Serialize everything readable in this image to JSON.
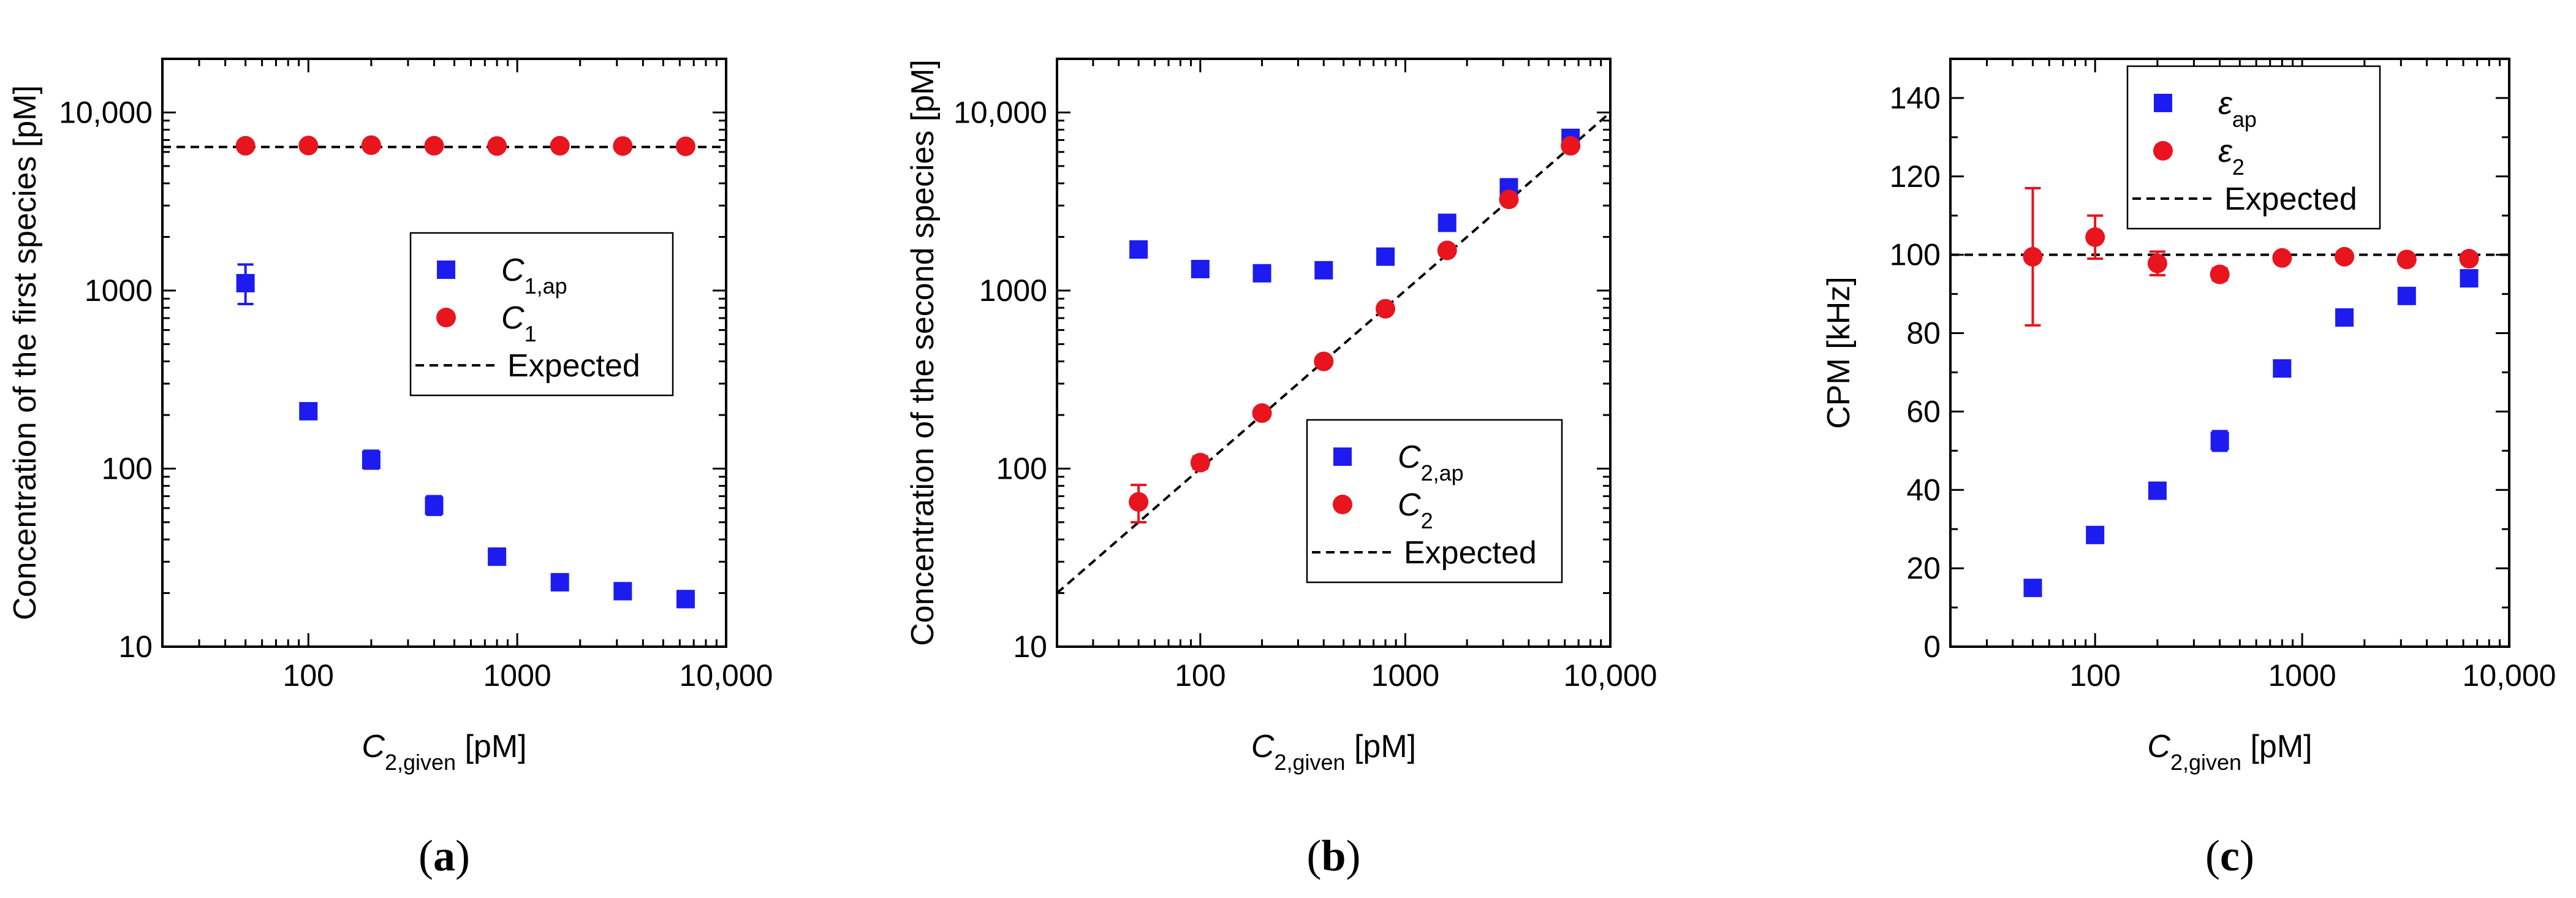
{
  "colors": {
    "series_ap": "#1c1cf0",
    "series_true": "#e8141e",
    "expected": "#000000"
  },
  "panels": [
    {
      "caption": {
        "open": "(",
        "letter": "a",
        "close": ")"
      },
      "chart_data": {
        "type": "scatter",
        "scale": "log-log",
        "title": "",
        "xlabel": {
          "main": "C",
          "sub": "2,given",
          "unit": " [pM]"
        },
        "ylabel": {
          "main": "Concentration of the first species [pM]"
        },
        "xlim": [
          20,
          10000
        ],
        "ylim": [
          10,
          20000
        ],
        "xticks": [
          {
            "v": 100,
            "label": "100"
          },
          {
            "v": 1000,
            "label": "1000"
          },
          {
            "v": 10000,
            "label": "10,000"
          }
        ],
        "yticks": [
          {
            "v": 10,
            "label": "10"
          },
          {
            "v": 100,
            "label": "100"
          },
          {
            "v": 1000,
            "label": "1000"
          },
          {
            "v": 10000,
            "label": "10,000"
          }
        ],
        "x": [
          50,
          100,
          200,
          400,
          800,
          1600,
          3200,
          6400
        ],
        "series": [
          {
            "name": "C_1,ap",
            "marker": "square",
            "color": "#1c1cf0",
            "values": [
              1100,
              210,
              112,
              62,
              32,
              23,
              20.5,
              18.5
            ],
            "err_lo": [
              260,
              18,
              12,
              7,
              3,
              2,
              1.8,
              1.8
            ],
            "err_hi": [
              300,
              22,
              14,
              8,
              3.5,
              2.5,
              2,
              2
            ]
          },
          {
            "name": "C_1",
            "marker": "circle",
            "color": "#e8141e",
            "values": [
              6500,
              6520,
              6550,
              6500,
              6480,
              6500,
              6480,
              6450
            ],
            "err_lo": [
              0,
              0,
              0,
              0,
              0,
              0,
              0,
              0
            ],
            "err_hi": [
              0,
              0,
              0,
              0,
              0,
              0,
              0,
              0
            ]
          }
        ],
        "expected": {
          "kind": "constant",
          "value": 6400
        },
        "legend": {
          "placement": "center-right",
          "entries": [
            {
              "marker": "square",
              "main": "C",
              "sub": "1,ap"
            },
            {
              "marker": "circle",
              "main": "C",
              "sub": "1"
            },
            {
              "marker": "dash",
              "main": "Expected",
              "sub": ""
            }
          ]
        }
      }
    },
    {
      "caption": {
        "open": "(",
        "letter": "b",
        "close": ")"
      },
      "chart_data": {
        "type": "scatter",
        "scale": "log-log",
        "title": "",
        "xlabel": {
          "main": "C",
          "sub": "2,given",
          "unit": " [pM]"
        },
        "ylabel": {
          "main": "Concentration of the second species [pM]"
        },
        "xlim": [
          20,
          10000
        ],
        "ylim": [
          10,
          20000
        ],
        "xticks": [
          {
            "v": 100,
            "label": "100"
          },
          {
            "v": 1000,
            "label": "1000"
          },
          {
            "v": 10000,
            "label": "10,000"
          }
        ],
        "yticks": [
          {
            "v": 10,
            "label": "10"
          },
          {
            "v": 100,
            "label": "100"
          },
          {
            "v": 1000,
            "label": "1000"
          },
          {
            "v": 10000,
            "label": "10,000"
          }
        ],
        "x": [
          50,
          100,
          200,
          400,
          800,
          1600,
          3200,
          6400
        ],
        "series": [
          {
            "name": "C_2,ap",
            "marker": "square",
            "color": "#1c1cf0",
            "values": [
              1700,
              1320,
              1250,
              1300,
              1550,
              2400,
              3800,
              7200
            ],
            "err_lo": [
              120,
              90,
              80,
              90,
              100,
              170,
              270,
              500
            ],
            "err_hi": [
              130,
              100,
              90,
              100,
              110,
              180,
              290,
              550
            ]
          },
          {
            "name": "C_2",
            "marker": "circle",
            "color": "#e8141e",
            "values": [
              65,
              108,
              205,
              400,
              790,
              1680,
              3250,
              6500
            ],
            "err_lo": [
              15,
              8,
              8,
              12,
              20,
              40,
              80,
              120
            ],
            "err_hi": [
              16,
              9,
              9,
              14,
              22,
              45,
              90,
              130
            ]
          }
        ],
        "expected": {
          "kind": "identity"
        },
        "legend": {
          "placement": "bottom-right",
          "entries": [
            {
              "marker": "square",
              "main": "C",
              "sub": "2,ap"
            },
            {
              "marker": "circle",
              "main": "C",
              "sub": "2"
            },
            {
              "marker": "dash",
              "main": "Expected",
              "sub": ""
            }
          ]
        }
      }
    },
    {
      "caption": {
        "open": "(",
        "letter": "c",
        "close": ")"
      },
      "chart_data": {
        "type": "scatter",
        "scale": "log-linear",
        "title": "",
        "xlabel": {
          "main": "C",
          "sub": "2,given",
          "unit": " [pM]"
        },
        "ylabel": {
          "main": "CPM [kHz]"
        },
        "xlim": [
          20,
          10000
        ],
        "ylim": [
          0,
          150
        ],
        "xticks": [
          {
            "v": 100,
            "label": "100"
          },
          {
            "v": 1000,
            "label": "1000"
          },
          {
            "v": 10000,
            "label": "10,000"
          }
        ],
        "yticks": [
          {
            "v": 0,
            "label": "0"
          },
          {
            "v": 20,
            "label": "20"
          },
          {
            "v": 40,
            "label": "40"
          },
          {
            "v": 60,
            "label": "60"
          },
          {
            "v": 80,
            "label": "80"
          },
          {
            "v": 100,
            "label": "100"
          },
          {
            "v": 120,
            "label": "120"
          },
          {
            "v": 140,
            "label": "140"
          }
        ],
        "x": [
          50,
          100,
          200,
          400,
          800,
          1600,
          3200,
          6400
        ],
        "series": [
          {
            "name": "epsilon_ap",
            "marker": "square",
            "color": "#1c1cf0",
            "values": [
              15,
              28.5,
              39.8,
              52.5,
              71,
              84,
              89.5,
              94
            ],
            "err_lo": [
              1.8,
              1.5,
              1.5,
              2.5,
              1.2,
              1,
              1,
              1
            ],
            "err_hi": [
              1.8,
              1.5,
              1.5,
              2.5,
              1.2,
              1,
              1,
              1
            ]
          },
          {
            "name": "epsilon_2",
            "marker": "circle",
            "color": "#e8141e",
            "values": [
              99.5,
              104.5,
              97.8,
              95,
              99.2,
              99.5,
              98.8,
              99
            ],
            "err_lo": [
              17.5,
              5.5,
              3,
              1.5,
              0.8,
              0.6,
              0.6,
              0.6
            ],
            "err_hi": [
              17.5,
              5.5,
              3,
              1.5,
              0.8,
              0.6,
              0.6,
              0.6
            ]
          }
        ],
        "expected": {
          "kind": "constant",
          "value": 100
        },
        "legend": {
          "placement": "top-left",
          "entries": [
            {
              "marker": "square",
              "main": "ε",
              "sub": "ap"
            },
            {
              "marker": "circle",
              "main": "ε",
              "sub": "2"
            },
            {
              "marker": "dash",
              "main": "Expected",
              "sub": ""
            }
          ]
        }
      }
    }
  ]
}
